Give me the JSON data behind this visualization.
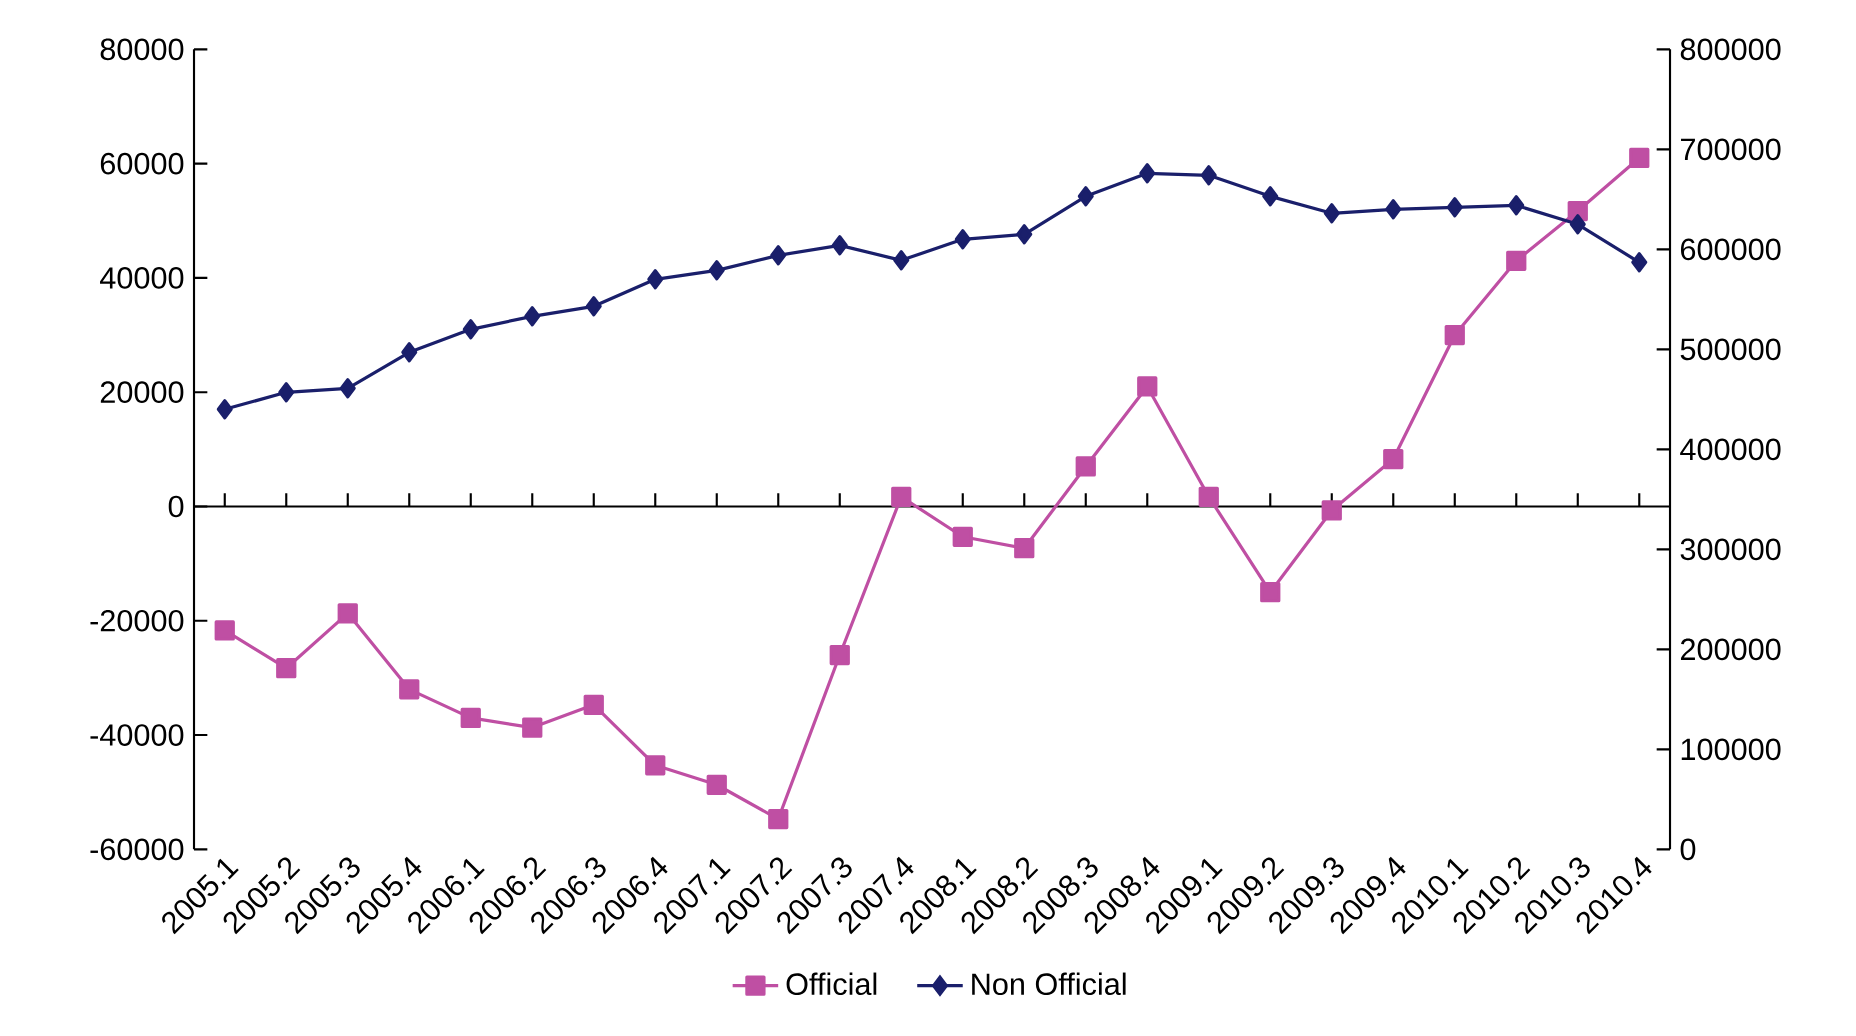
{
  "chart_data": {
    "type": "line",
    "categories": [
      "2005.1",
      "2005.2",
      "2005.3",
      "2005.4",
      "2006.1",
      "2006.2",
      "2006.3",
      "2006.4",
      "2007.1",
      "2007.2",
      "2007.3",
      "2007.4",
      "2008.1",
      "2008.2",
      "2008.3",
      "2008.4",
      "2009.1",
      "2009.2",
      "2009.3",
      "2009.4",
      "2010.1",
      "2010.2",
      "2010.3",
      "2010.4"
    ],
    "series": [
      {
        "name": "Official",
        "color": "#bf4fa3",
        "marker": "square",
        "values": [
          -21700,
          -28300,
          -18700,
          -32000,
          -37000,
          -38700,
          -34700,
          -45300,
          -48700,
          -54700,
          -26000,
          1700,
          -5300,
          -7300,
          7000,
          21000,
          1700,
          -15000,
          -700,
          8300,
          30000,
          43000,
          51700,
          61000
        ]
      },
      {
        "name": "Non Official",
        "color": "#1a1f6b",
        "marker": "diamond",
        "axis": "y2",
        "values": [
          440000,
          457000,
          461000,
          497000,
          520000,
          533000,
          543000,
          570000,
          579000,
          594000,
          604000,
          589000,
          610000,
          615000,
          653000,
          676000,
          674000,
          653000,
          636000,
          640000,
          642000,
          644000,
          625000,
          587000
        ]
      }
    ],
    "ylim": [
      -60000,
      80000
    ],
    "yticks": [
      -60000,
      -40000,
      -20000,
      0,
      20000,
      40000,
      60000,
      80000
    ],
    "y2lim": [
      0,
      800000
    ],
    "y2ticks": [
      0,
      100000,
      200000,
      300000,
      400000,
      500000,
      600000,
      700000,
      800000
    ],
    "legend": "bottom"
  }
}
